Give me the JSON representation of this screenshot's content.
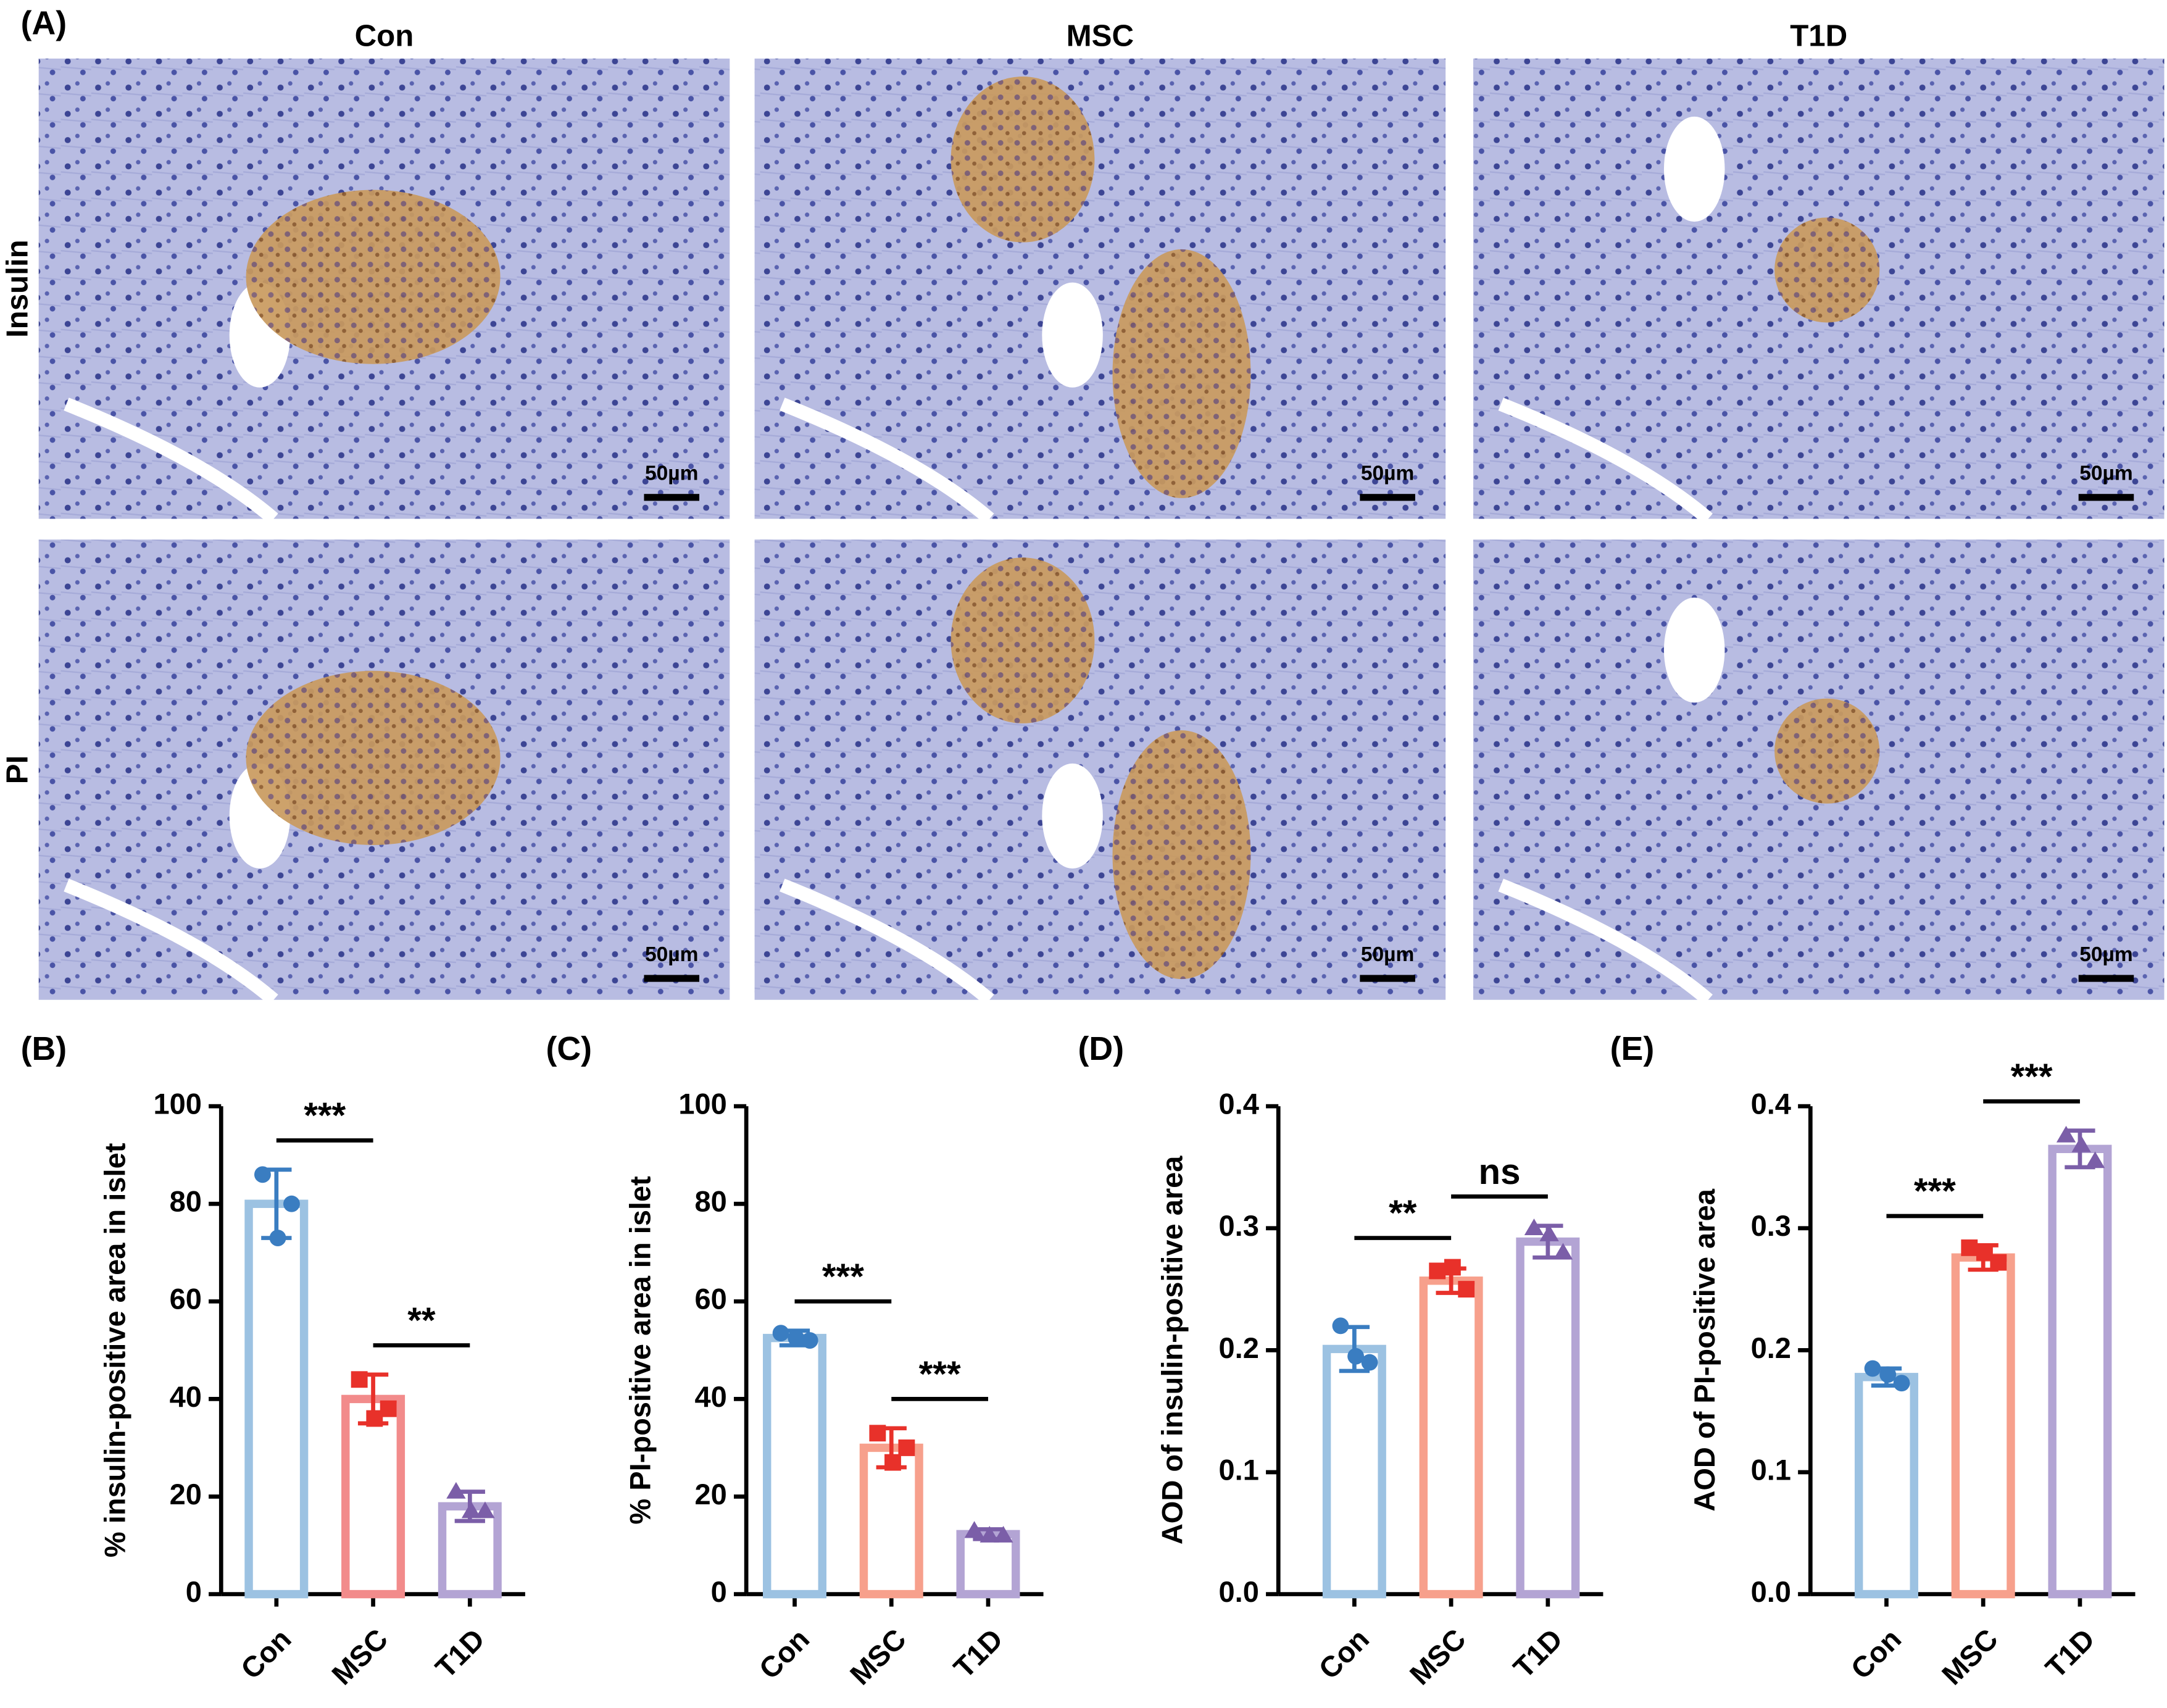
{
  "panel_a": {
    "label": "(A)",
    "columns": [
      "Con",
      "MSC",
      "T1D"
    ],
    "rows": [
      "Insulin",
      "PI"
    ],
    "scale_bar": "50µm"
  },
  "chart_data": [
    {
      "type": "bar",
      "panel": "(B)",
      "ylabel": "% insulin-positive area in islet",
      "categories": [
        "Con",
        "MSC",
        "T1D"
      ],
      "values": [
        80,
        40,
        18
      ],
      "errors": [
        7,
        5,
        3
      ],
      "points": [
        [
          86,
          80,
          73
        ],
        [
          44,
          38,
          36
        ],
        [
          21,
          17,
          17
        ]
      ],
      "ylim": [
        0,
        100
      ],
      "yticks": [
        0,
        20,
        40,
        60,
        80,
        100
      ],
      "comparisons": [
        "***",
        "**"
      ],
      "colors": [
        "#9cc2e2",
        "#f28b8b",
        "#b3a4d4"
      ],
      "point_colors": [
        "#3a7dc1",
        "#e8312a",
        "#7b5ea8"
      ]
    },
    {
      "type": "bar",
      "panel": "(C)",
      "ylabel": "% PI-positive area in islet",
      "categories": [
        "Con",
        "MSC",
        "T1D"
      ],
      "values": [
        52.5,
        30,
        12.3
      ],
      "errors": [
        1.5,
        4,
        1
      ],
      "points": [
        [
          53.5,
          52,
          52.5
        ],
        [
          33,
          30,
          27
        ],
        [
          13,
          12,
          12
        ]
      ],
      "ylim": [
        0,
        100
      ],
      "yticks": [
        0,
        20,
        40,
        60,
        80,
        100
      ],
      "comparisons": [
        "***",
        "***"
      ],
      "colors": [
        "#9cc2e2",
        "#f7a08c",
        "#b3a4d4"
      ],
      "point_colors": [
        "#3a7dc1",
        "#e8312a",
        "#7b5ea8"
      ]
    },
    {
      "type": "bar",
      "panel": "(D)",
      "ylabel": "AOD of insulin-positive area",
      "categories": [
        "Con",
        "MSC",
        "T1D"
      ],
      "values": [
        0.201,
        0.257,
        0.289
      ],
      "errors": [
        0.018,
        0.01,
        0.013
      ],
      "points": [
        [
          0.22,
          0.19,
          0.195
        ],
        [
          0.265,
          0.25,
          0.268
        ],
        [
          0.3,
          0.28,
          0.295
        ]
      ],
      "ylim": [
        0,
        0.4
      ],
      "yticks": [
        {
          "value": 0,
          "label": "0.0"
        },
        0.1,
        0.2,
        0.3,
        0.4
      ],
      "comparisons": [
        "**",
        "ns"
      ],
      "colors": [
        "#9cc2e2",
        "#f7a08c",
        "#b3a4d4"
      ],
      "point_colors": [
        "#3a7dc1",
        "#e8312a",
        "#7b5ea8"
      ]
    },
    {
      "type": "bar",
      "panel": "(E)",
      "ylabel": "AOD of PI-positive area",
      "categories": [
        "Con",
        "MSC",
        "T1D"
      ],
      "values": [
        0.178,
        0.276,
        0.365
      ],
      "errors": [
        0.007,
        0.01,
        0.015
      ],
      "points": [
        [
          0.185,
          0.173,
          0.18
        ],
        [
          0.284,
          0.272,
          0.28
        ],
        [
          0.376,
          0.355,
          0.368
        ]
      ],
      "ylim": [
        0,
        0.4
      ],
      "yticks": [
        {
          "value": 0,
          "label": "0.0"
        },
        0.1,
        0.2,
        0.3,
        0.4
      ],
      "comparisons": [
        "***",
        "***"
      ],
      "colors": [
        "#9cc2e2",
        "#f7a08c",
        "#b3a4d4"
      ],
      "point_colors": [
        "#3a7dc1",
        "#e8312a",
        "#7b5ea8"
      ]
    }
  ]
}
